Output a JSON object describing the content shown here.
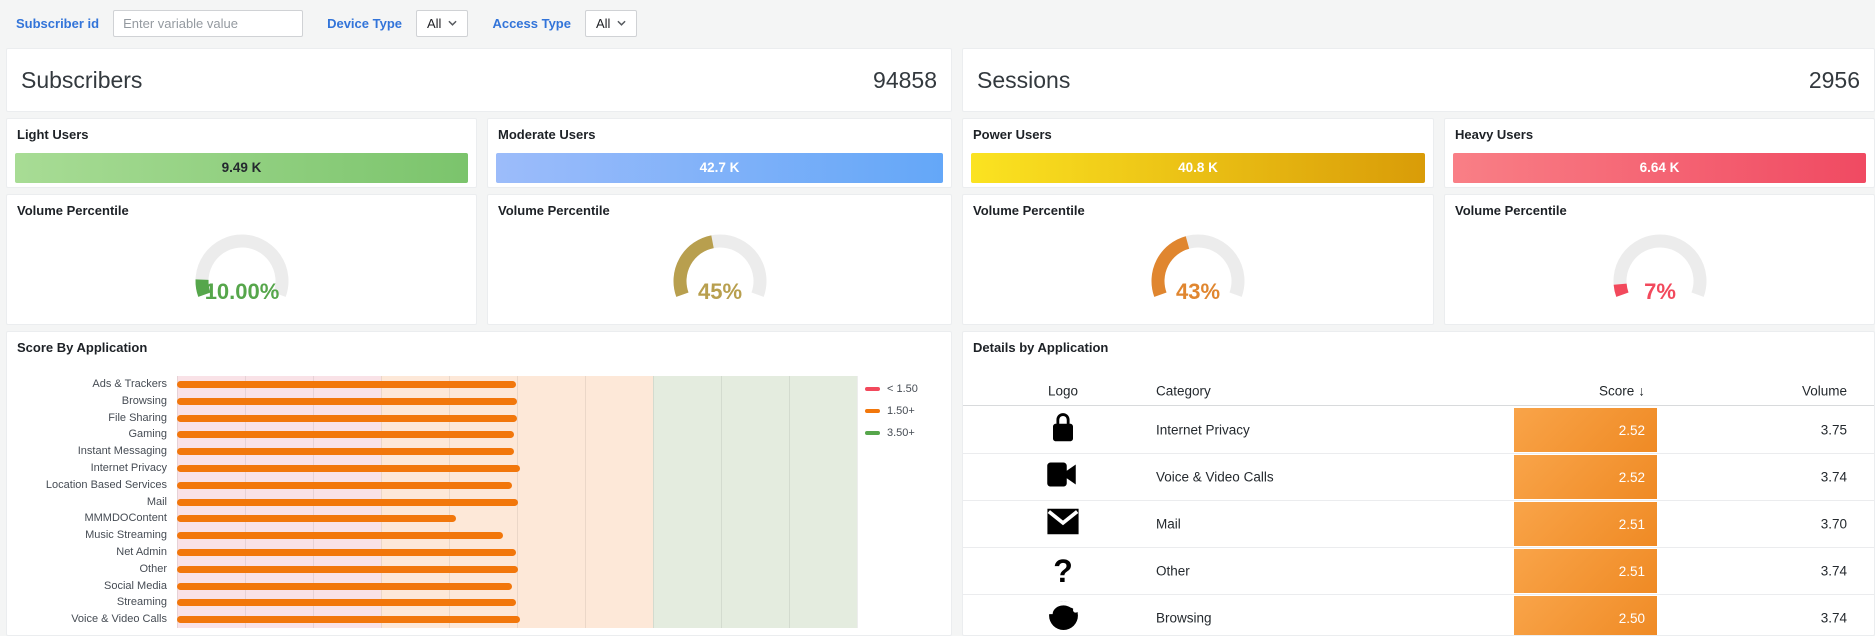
{
  "topbar": {
    "subscriber_label": "Subscriber id",
    "subscriber_placeholder": "Enter variable value",
    "device_type_label": "Device Type",
    "device_type_value": "All",
    "access_type_label": "Access Type",
    "access_type_value": "All"
  },
  "stats": {
    "subscribers": {
      "title": "Subscribers",
      "value": "94858"
    },
    "sessions": {
      "title": "Sessions",
      "value": "2956"
    }
  },
  "user_tiles": [
    {
      "title": "Light Users",
      "value": "9.49 K",
      "color_start": "#a8dc95",
      "color_end": "#7bc46c",
      "text_color": "#24292e"
    },
    {
      "title": "Moderate Users",
      "value": "42.7 K",
      "color_start": "#9cbcfa",
      "color_end": "#64a7f8",
      "text_color": "#ffffff"
    },
    {
      "title": "Power Users",
      "value": "40.8 K",
      "color_start": "#fbe321",
      "color_end": "#d99c08",
      "text_color": "#ffffff"
    },
    {
      "title": "Heavy Users",
      "value": "6.64 K",
      "color_start": "#f97f86",
      "color_end": "#f04a62",
      "text_color": "#ffffff"
    }
  ],
  "gauges": [
    {
      "title": "Volume Percentile",
      "display": "10.00%",
      "percent": 10,
      "color": "#56a64b"
    },
    {
      "title": "Volume Percentile",
      "display": "45%",
      "percent": 45,
      "color": "#b89f4e"
    },
    {
      "title": "Volume Percentile",
      "display": "43%",
      "percent": 43,
      "color": "#e0862f"
    },
    {
      "title": "Volume Percentile",
      "display": "7%",
      "percent": 7,
      "color": "#f2495c"
    }
  ],
  "chart_data": {
    "type": "bar",
    "orientation": "horizontal",
    "title": "Score By Application",
    "categories": [
      "Ads & Trackers",
      "Browsing",
      "File Sharing",
      "Gaming",
      "Instant Messaging",
      "Internet Privacy",
      "Location Based Services",
      "Mail",
      "MMMDOContent",
      "Music Streaming",
      "Net Admin",
      "Other",
      "Social Media",
      "Streaming",
      "Voice & Video Calls"
    ],
    "values": [
      2.49,
      2.5,
      2.5,
      2.48,
      2.48,
      2.52,
      2.46,
      2.51,
      2.05,
      2.4,
      2.49,
      2.51,
      2.46,
      2.49,
      2.52
    ],
    "xlim": [
      0,
      5
    ],
    "x_ticks": [
      0,
      0.5,
      1,
      1.5,
      2,
      2.5,
      3,
      3.5,
      4,
      4.5,
      5
    ],
    "x_tick_labels": [
      "0",
      "0.5",
      "1",
      "1.5",
      "2",
      "2.5",
      "3",
      "3.5",
      "4",
      "4.5",
      "5"
    ],
    "bar_color": "#f2770b",
    "grid": true,
    "bands": [
      {
        "from": 0,
        "to": 1.5,
        "color": "#f9e2e7"
      },
      {
        "from": 1.5,
        "to": 3.5,
        "color": "#fde8d8"
      },
      {
        "from": 3.5,
        "to": 5,
        "color": "#e4ecdf"
      }
    ],
    "legend_position": "right",
    "legend": [
      {
        "label": "< 1.50",
        "color": "#f2495c"
      },
      {
        "label": "1.50+",
        "color": "#f2770b"
      },
      {
        "label": "3.50+",
        "color": "#56a64b"
      }
    ]
  },
  "details": {
    "title": "Details by Application",
    "columns": {
      "logo": "Logo",
      "category": "Category",
      "score": "Score",
      "volume": "Volume"
    },
    "sort_arrow": "↓",
    "score_cell_gradient": [
      "#f9a449",
      "#ef8a24"
    ],
    "rows": [
      {
        "icon": "lock-icon",
        "category": "Internet Privacy",
        "score": "2.52",
        "volume": "3.75"
      },
      {
        "icon": "video-camera-icon",
        "category": "Voice & Video Calls",
        "score": "2.52",
        "volume": "3.74"
      },
      {
        "icon": "envelope-icon",
        "category": "Mail",
        "score": "2.51",
        "volume": "3.70"
      },
      {
        "icon": "question-mark-icon",
        "category": "Other",
        "score": "2.51",
        "volume": "3.74"
      },
      {
        "icon": "browser-icon",
        "category": "Browsing",
        "score": "2.50",
        "volume": "3.74"
      }
    ]
  }
}
